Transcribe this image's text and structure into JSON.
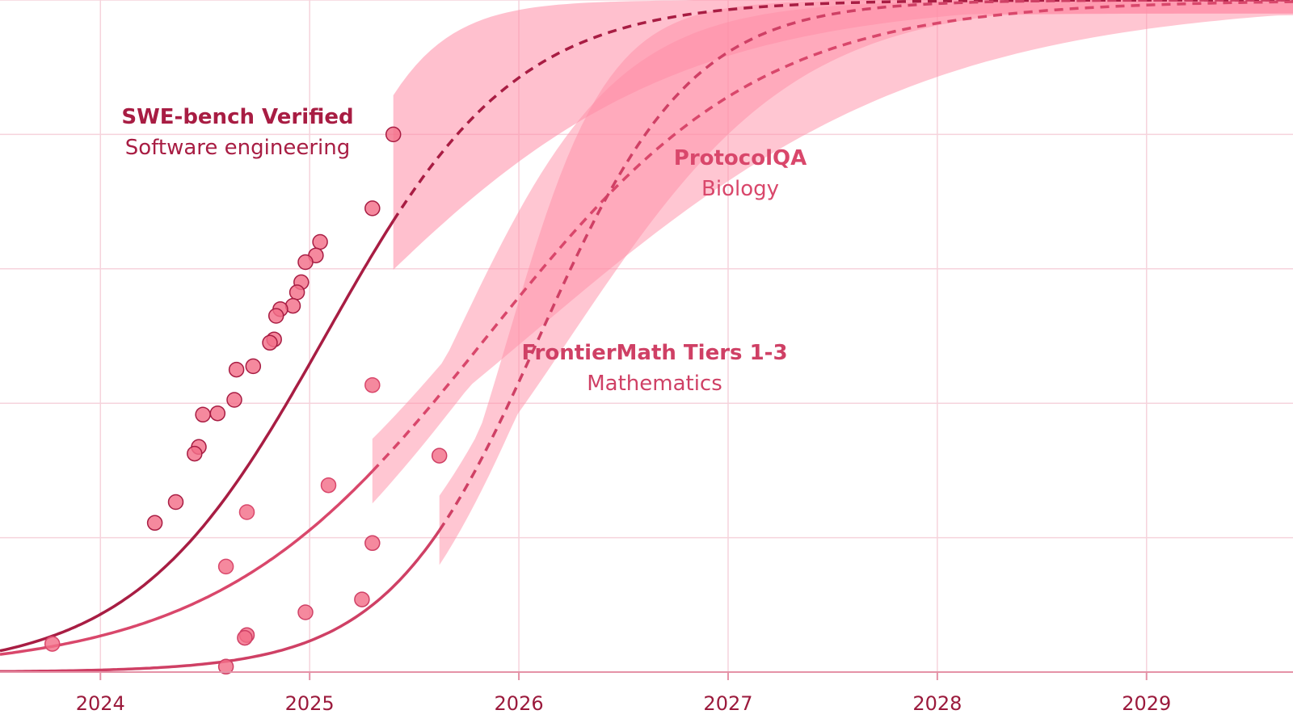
{
  "chart_data": {
    "type": "line",
    "grid": true,
    "x_ticks": [
      2024,
      2025,
      2026,
      2027,
      2028,
      2029
    ],
    "xlim": [
      2023.52,
      2029.7
    ],
    "ylim": [
      0,
      1.0
    ],
    "y_gridlines": [
      0.2,
      0.4,
      0.6,
      0.8,
      1.0
    ],
    "colors": {
      "swe": "#a81d43",
      "protocol": "#d9476b",
      "frontier": "#cf4065",
      "band": "#ff8da6",
      "points": "#f36f89",
      "grid": "#f6d3dc",
      "axis": "#e592a7",
      "tick": "#9b1a3c"
    },
    "series": [
      {
        "key": "swe",
        "name": "SWE-bench Verified",
        "subtitle": "Software engineering",
        "fit": {
          "type": "logistic",
          "L": 1.0,
          "x0": 2025.075,
          "k": 2.2
        },
        "last_observed_x": 2025.4,
        "projection_end_x": 2029.7,
        "band": {
          "lower_k": 1.25,
          "upper_k": 4.0,
          "lower_x0": 2025.08,
          "upper_x0": 2024.95,
          "opacity": 0.55
        },
        "points": [
          {
            "x": 2025.4,
            "y": 0.8
          },
          {
            "x": 2025.3,
            "y": 0.69
          },
          {
            "x": 2025.05,
            "y": 0.64
          },
          {
            "x": 2025.03,
            "y": 0.62
          },
          {
            "x": 2024.98,
            "y": 0.61
          },
          {
            "x": 2024.96,
            "y": 0.58
          },
          {
            "x": 2024.94,
            "y": 0.565
          },
          {
            "x": 2024.92,
            "y": 0.545
          },
          {
            "x": 2024.86,
            "y": 0.54
          },
          {
            "x": 2024.84,
            "y": 0.53
          },
          {
            "x": 2024.83,
            "y": 0.495
          },
          {
            "x": 2024.81,
            "y": 0.49
          },
          {
            "x": 2024.73,
            "y": 0.455
          },
          {
            "x": 2024.65,
            "y": 0.45
          },
          {
            "x": 2024.64,
            "y": 0.405
          },
          {
            "x": 2024.56,
            "y": 0.385
          },
          {
            "x": 2024.49,
            "y": 0.383
          },
          {
            "x": 2024.47,
            "y": 0.335
          },
          {
            "x": 2024.45,
            "y": 0.325
          },
          {
            "x": 2024.36,
            "y": 0.253
          },
          {
            "x": 2024.26,
            "y": 0.222
          }
        ]
      },
      {
        "key": "protocol",
        "name": "ProtocolQA",
        "subtitle": "Biology",
        "fit": {
          "type": "logistic",
          "L": 1.0,
          "x0": 2025.85,
          "k": 1.55
        },
        "last_observed_x": 2025.3,
        "projection_end_x": 2029.7,
        "band": {
          "lower_k": 1.05,
          "upper_k": 2.6,
          "lower_x0": 2026.05,
          "upper_x0": 2025.7,
          "opacity": 0.5
        },
        "points": [
          {
            "x": 2025.3,
            "y": 0.427
          },
          {
            "x": 2025.09,
            "y": 0.278
          },
          {
            "x": 2024.7,
            "y": 0.238
          },
          {
            "x": 2024.6,
            "y": 0.157
          },
          {
            "x": 2023.77,
            "y": 0.042
          }
        ]
      },
      {
        "key": "frontier",
        "name": "FrontierMath Tiers 1-3",
        "subtitle": "Mathematics",
        "fit": {
          "type": "logistic",
          "L": 1.0,
          "x0": 2026.1,
          "k": 2.75
        },
        "last_observed_x": 2025.62,
        "projection_end_x": 2029.7,
        "band": {
          "lower_k": 1.85,
          "upper_k": 4.2,
          "lower_x0": 2026.25,
          "upper_x0": 2025.95,
          "opacity": 0.5
        },
        "points": [
          {
            "x": 2025.62,
            "y": 0.322
          },
          {
            "x": 2025.3,
            "y": 0.192
          },
          {
            "x": 2025.25,
            "y": 0.108
          },
          {
            "x": 2024.98,
            "y": 0.089
          },
          {
            "x": 2024.7,
            "y": 0.055
          },
          {
            "x": 2024.69,
            "y": 0.051
          },
          {
            "x": 2024.6,
            "y": 0.008
          }
        ]
      }
    ]
  }
}
